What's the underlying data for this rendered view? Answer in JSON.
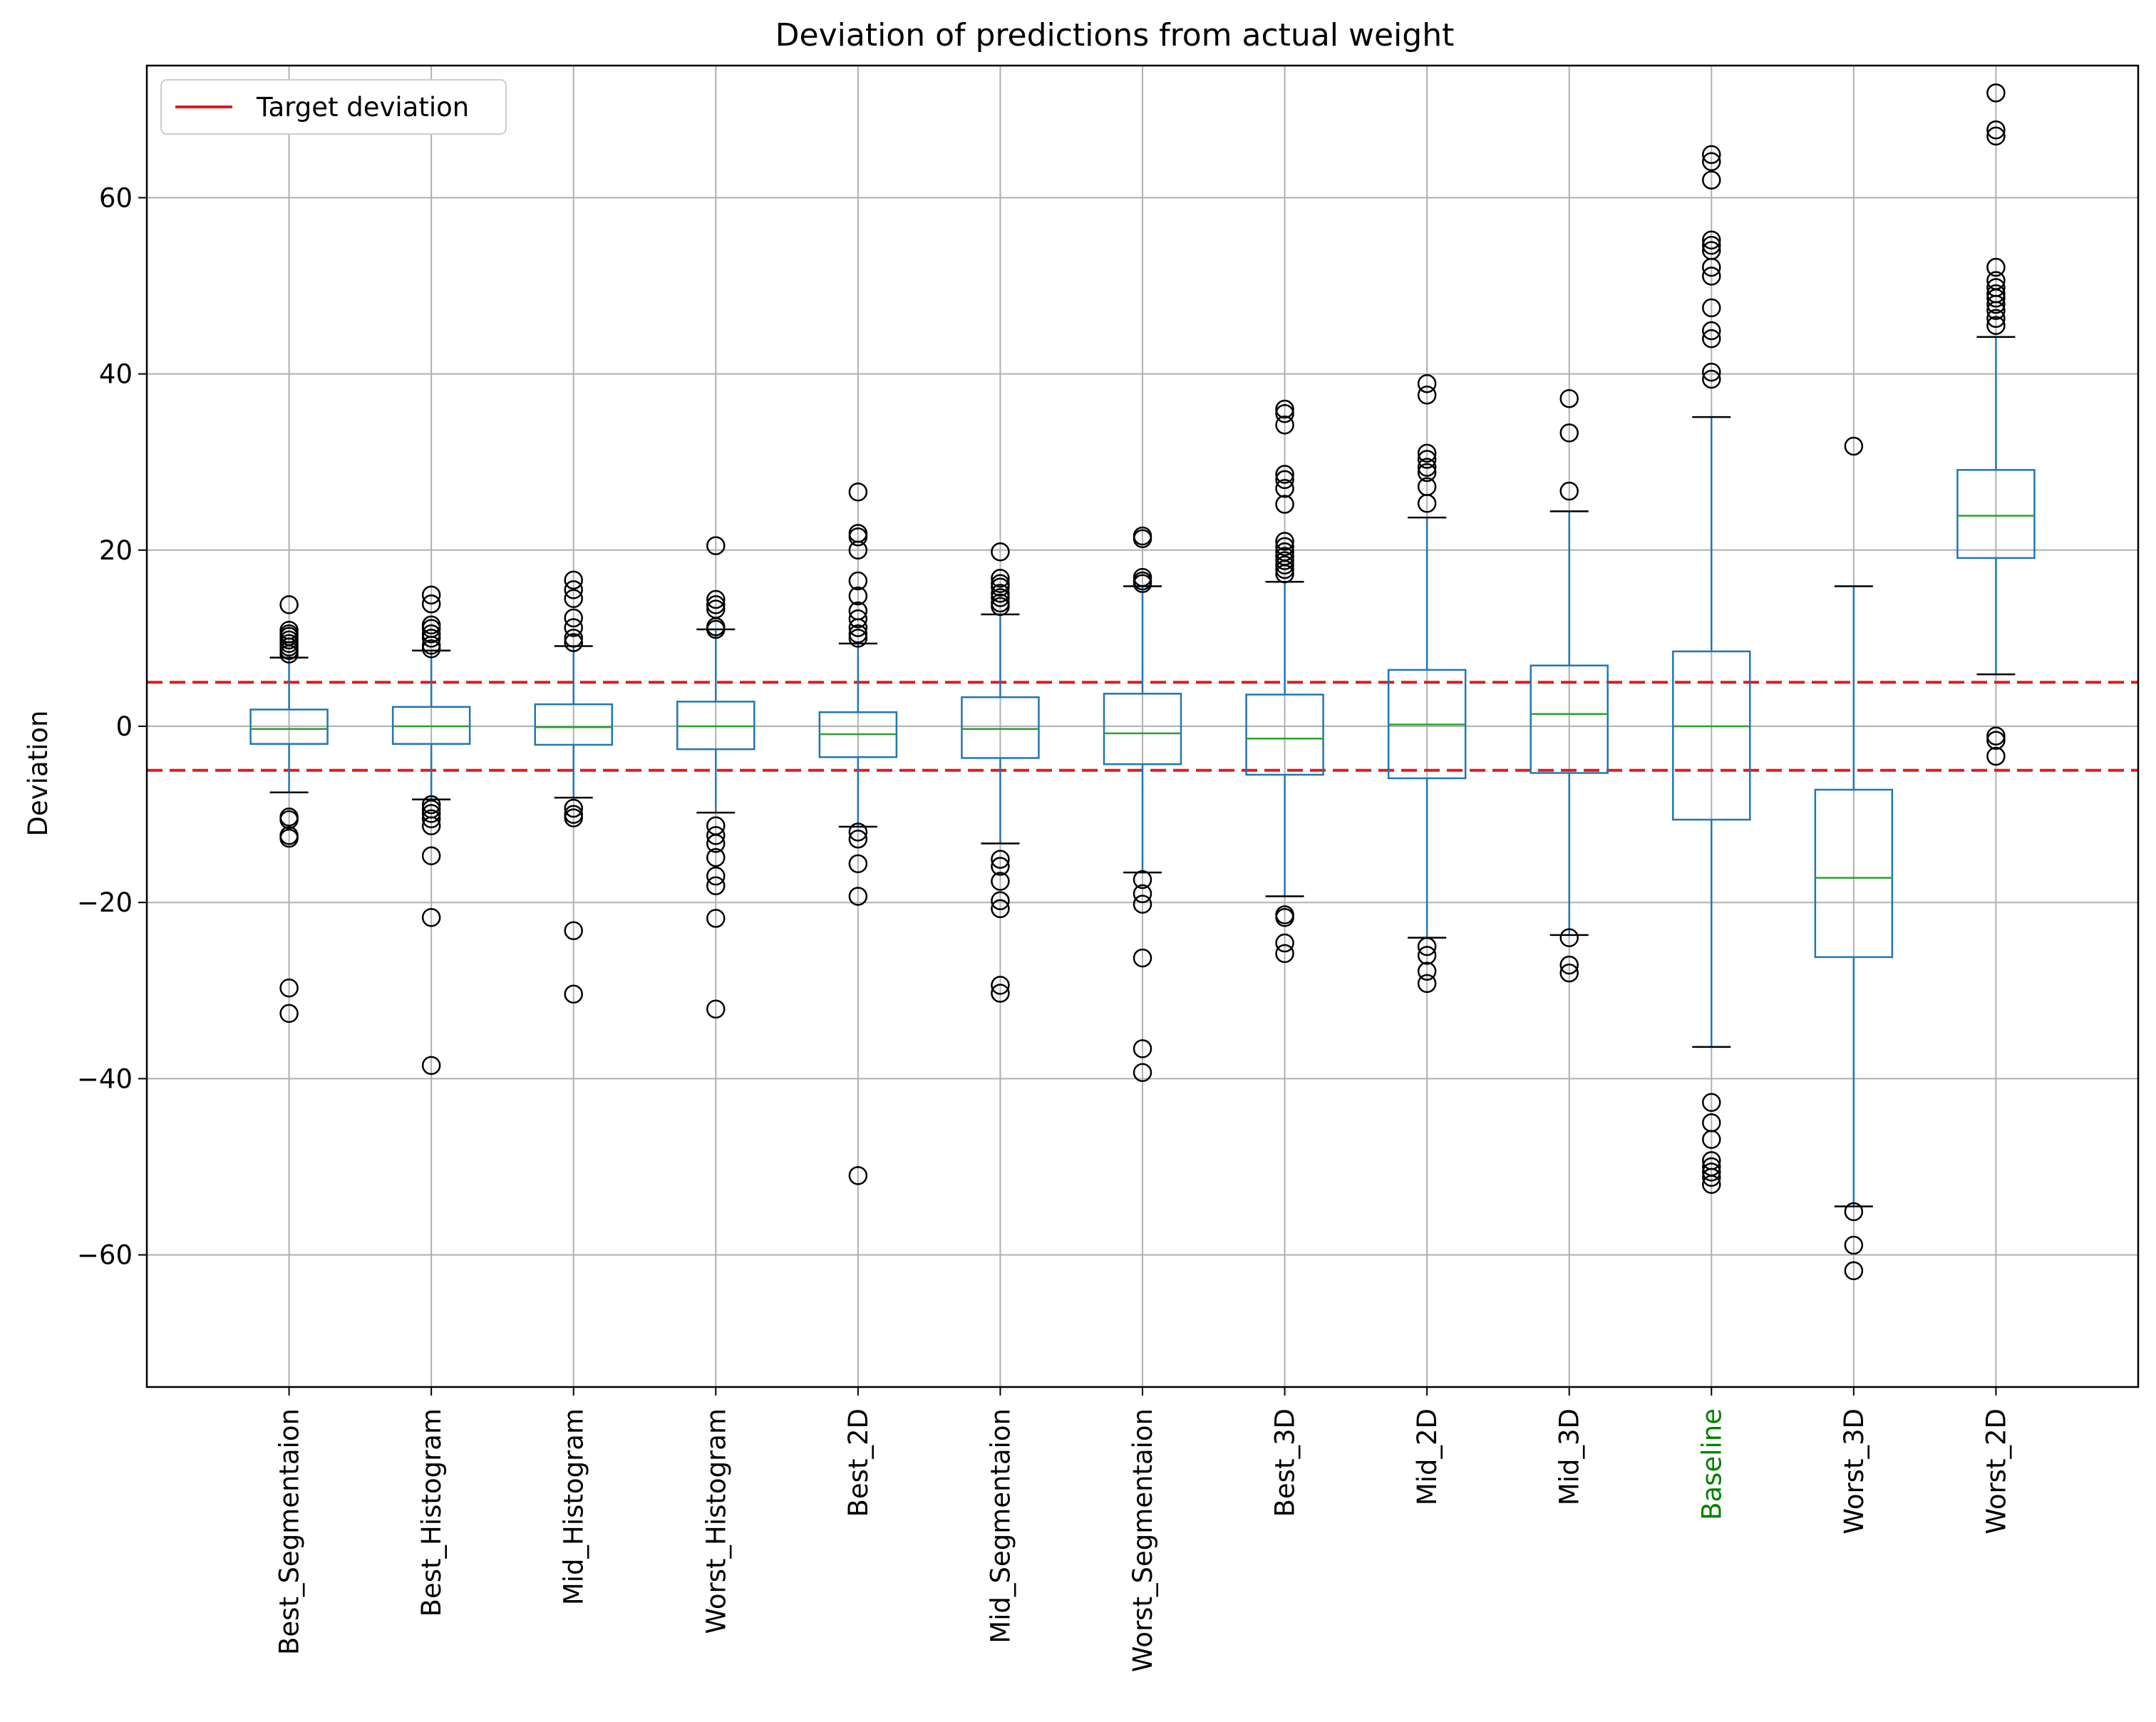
{
  "chart_data": {
    "type": "box",
    "title": "Deviation of predictions from actual weight",
    "xlabel": "",
    "ylabel": "Deviation",
    "ylim": [
      -75,
      75
    ],
    "yticks": [
      -60,
      -40,
      -20,
      0,
      20,
      40,
      60
    ],
    "grid": true,
    "legend": {
      "placement": "top-left",
      "entries": [
        {
          "label": "Target deviation",
          "color": "#e31a1c"
        }
      ]
    },
    "reference_lines": [
      {
        "y": 5,
        "style": "dashed",
        "color": "#e31a1c"
      },
      {
        "y": -5,
        "style": "dashed",
        "color": "#e31a1c"
      }
    ],
    "colors": {
      "box": "#1f77b4",
      "median": "#2ca02c",
      "highlight_label": "#008000",
      "grid": "#b0b0b0"
    },
    "categories": [
      {
        "label": "Best_Segmentaion",
        "label_color": "#000000",
        "whislo": -7.5,
        "q1": -2.0,
        "median": -0.3,
        "q3": 1.9,
        "whishi": 7.8,
        "fliers": [
          13.8,
          10.9,
          10.5,
          10.2,
          9.8,
          9.4,
          9.0,
          8.6,
          8.2,
          -10.3,
          -10.6,
          -12.4,
          -12.7,
          -29.7,
          -32.6
        ]
      },
      {
        "label": "Best_Histogram",
        "label_color": "#000000",
        "whislo": -8.3,
        "q1": -2.0,
        "median": 0.0,
        "q3": 2.2,
        "whishi": 8.6,
        "fliers": [
          14.9,
          13.9,
          11.5,
          11.1,
          10.5,
          10.0,
          9.2,
          8.8,
          -8.9,
          -9.4,
          -9.9,
          -10.5,
          -11.3,
          -14.7,
          -21.7,
          -38.5
        ]
      },
      {
        "label": "Mid_Histogram",
        "label_color": "#000000",
        "whislo": -8.1,
        "q1": -2.1,
        "median": -0.1,
        "q3": 2.5,
        "whishi": 9.1,
        "fliers": [
          16.6,
          15.5,
          14.5,
          12.3,
          11.2,
          10.0,
          9.5,
          -9.3,
          -10.0,
          -10.4,
          -23.2,
          -30.4
        ]
      },
      {
        "label": "Worst_Histogram",
        "label_color": "#000000",
        "whislo": -9.8,
        "q1": -2.6,
        "median": 0.0,
        "q3": 2.8,
        "whishi": 11.0,
        "fliers": [
          20.5,
          14.4,
          13.8,
          13.3,
          11.3,
          11.0,
          -11.3,
          -12.4,
          -13.3,
          -14.9,
          -17.0,
          -18.1,
          -21.8,
          -32.1
        ]
      },
      {
        "label": "Best_2D",
        "label_color": "#000000",
        "whislo": -11.4,
        "q1": -3.5,
        "median": -0.9,
        "q3": 1.6,
        "whishi": 9.4,
        "fliers": [
          26.6,
          21.9,
          21.5,
          20.0,
          16.5,
          14.8,
          13.1,
          12.2,
          11.2,
          10.5,
          10.0,
          -12.0,
          -12.8,
          -15.6,
          -19.3,
          -51.0
        ]
      },
      {
        "label": "Mid_Segmentaion",
        "label_color": "#000000",
        "whislo": -13.3,
        "q1": -3.6,
        "median": -0.3,
        "q3": 3.3,
        "whishi": 12.7,
        "fliers": [
          19.8,
          16.8,
          16.2,
          15.8,
          15.1,
          14.6,
          14.0,
          13.6,
          -15.1,
          -15.9,
          -17.6,
          -19.8,
          -20.7,
          -29.4,
          -30.3
        ]
      },
      {
        "label": "Worst_Segmentaion",
        "label_color": "#000000",
        "whislo": -16.6,
        "q1": -4.3,
        "median": -0.8,
        "q3": 3.7,
        "whishi": 15.9,
        "fliers": [
          21.6,
          21.3,
          16.9,
          16.5,
          16.2,
          -17.4,
          -19.0,
          -20.2,
          -26.3,
          -36.6,
          -39.3
        ]
      },
      {
        "label": "Best_3D",
        "label_color": "#000000",
        "whislo": -19.3,
        "q1": -5.5,
        "median": -1.4,
        "q3": 3.6,
        "whishi": 16.4,
        "fliers": [
          36.0,
          35.5,
          34.2,
          28.6,
          28.0,
          27.0,
          25.2,
          21.0,
          20.4,
          19.8,
          19.3,
          18.8,
          18.3,
          17.8,
          17.3,
          -21.4,
          -21.7,
          -24.6,
          -25.8
        ]
      },
      {
        "label": "Mid_2D",
        "label_color": "#000000",
        "whislo": -24.0,
        "q1": -5.9,
        "median": 0.2,
        "q3": 6.4,
        "whishi": 23.7,
        "fliers": [
          38.9,
          37.6,
          31.0,
          30.3,
          29.4,
          28.8,
          27.2,
          25.3,
          -25.0,
          -26.0,
          -27.8,
          -29.2
        ]
      },
      {
        "label": "Mid_3D",
        "label_color": "#000000",
        "whislo": -23.7,
        "q1": -5.3,
        "median": 1.4,
        "q3": 6.9,
        "whishi": 24.4,
        "fliers": [
          37.2,
          33.3,
          26.7,
          -24.0,
          -27.1,
          -28.0
        ]
      },
      {
        "label": "Baseline",
        "label_color": "#008000",
        "whislo": -36.4,
        "q1": -10.6,
        "median": 0.0,
        "q3": 8.5,
        "whishi": 35.1,
        "fliers": [
          64.9,
          64.1,
          62.0,
          55.2,
          54.6,
          54.0,
          52.1,
          51.1,
          47.5,
          44.9,
          44.0,
          40.2,
          39.4,
          -42.7,
          -45.0,
          -46.9,
          -49.3,
          -50.0,
          -50.6,
          -51.2,
          -52.0
        ]
      },
      {
        "label": "Worst_3D",
        "label_color": "#000000",
        "whislo": -54.5,
        "q1": -26.2,
        "median": -17.2,
        "q3": -7.2,
        "whishi": 15.9,
        "fliers": [
          31.8,
          -55.1,
          -58.9,
          -61.8
        ]
      },
      {
        "label": "Worst_2D",
        "label_color": "#000000",
        "whislo": 5.9,
        "q1": 19.1,
        "median": 23.9,
        "q3": 29.1,
        "whishi": 44.2,
        "fliers": [
          71.9,
          67.7,
          67.0,
          52.1,
          50.6,
          49.8,
          49.1,
          48.6,
          47.9,
          47.2,
          46.3,
          45.5,
          -1.1,
          -1.6,
          -3.4
        ]
      }
    ]
  }
}
